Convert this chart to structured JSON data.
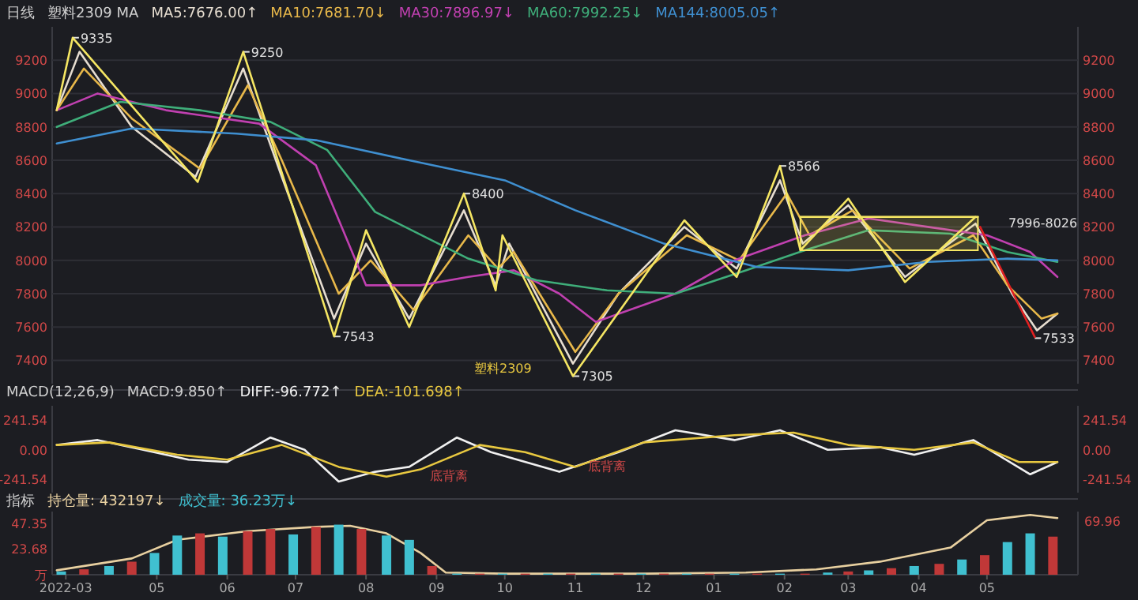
{
  "chart_data": [
    {
      "type": "line",
      "title": "日线",
      "subtitle": "塑料2309   MA",
      "legend": "top left",
      "grid": "y",
      "tick_labels": "y",
      "xlim": [
        "2022-03-16",
        "2023-06-10"
      ],
      "ylim": [
        7260,
        9400
      ],
      "yticks": [
        7400,
        7600,
        7800,
        8000,
        8200,
        8400,
        8600,
        8800,
        9000,
        9200
      ],
      "y2lim": [
        7260,
        9400
      ],
      "y2ticks": [
        7400,
        7600,
        7800,
        8000,
        8200,
        8400,
        8600,
        8800,
        9000,
        9200
      ],
      "annotations": [
        {
          "text": "9335",
          "x": "2022-03-25",
          "y": 9335
        },
        {
          "text": "9250",
          "x": "2022-06-08",
          "y": 9250
        },
        {
          "text": "7543",
          "x": "2022-07-18",
          "y": 7543
        },
        {
          "text": "8400",
          "x": "2022-09-13",
          "y": 8400
        },
        {
          "text": "7305",
          "x": "2022-10-31",
          "y": 7305
        },
        {
          "text": "8566",
          "x": "2023-01-30",
          "y": 8566
        },
        {
          "text": "7533",
          "x": "2023-05-22",
          "y": 7533
        },
        "塑料2309",
        "7996-8026"
      ],
      "series": [
        {
          "name": "MA5:7676.00↑",
          "color": "#e6ddd0",
          "x": [
            "2022-03-18",
            "2022-03-28",
            "2022-04-20",
            "2022-05-18",
            "2022-06-08",
            "2022-06-25",
            "2022-07-18",
            "2022-08-01",
            "2022-08-20",
            "2022-09-13",
            "2022-09-27",
            "2022-10-03",
            "2022-10-31",
            "2022-11-20",
            "2022-12-19",
            "2023-01-11",
            "2023-01-30",
            "2023-02-09",
            "2023-03-01",
            "2023-03-26",
            "2023-04-26",
            "2023-05-12",
            "2023-05-23",
            "2023-06-01"
          ],
          "values": [
            8900,
            9250,
            8800,
            8500,
            9150,
            8500,
            7650,
            8100,
            7650,
            8300,
            7850,
            8100,
            7380,
            7800,
            8200,
            7950,
            8480,
            8100,
            8330,
            7900,
            8220,
            7800,
            7580,
            7680
          ]
        },
        {
          "name": "MA10:7681.70↓",
          "color": "#e8b84a",
          "x": [
            "2022-03-18",
            "2022-03-30",
            "2022-04-20",
            "2022-05-20",
            "2022-06-10",
            "2022-06-25",
            "2022-07-20",
            "2022-08-03",
            "2022-08-22",
            "2022-09-15",
            "2022-09-28",
            "2022-10-05",
            "2022-11-01",
            "2022-11-20",
            "2022-12-20",
            "2023-01-12",
            "2023-02-02",
            "2023-02-12",
            "2023-03-03",
            "2023-03-28",
            "2023-04-25",
            "2023-05-10",
            "2023-05-25",
            "2023-06-01"
          ],
          "values": [
            8900,
            9150,
            8850,
            8550,
            9050,
            8600,
            7800,
            8000,
            7700,
            8150,
            7950,
            8050,
            7450,
            7800,
            8150,
            8000,
            8400,
            8150,
            8300,
            7950,
            8150,
            7850,
            7650,
            7680
          ]
        },
        {
          "name": "MA30:7896.97↓",
          "color": "#c040b0",
          "x": [
            "2022-03-18",
            "2022-04-05",
            "2022-05-05",
            "2022-06-15",
            "2022-07-10",
            "2022-08-01",
            "2022-08-25",
            "2022-09-15",
            "2022-10-05",
            "2022-10-25",
            "2022-11-10",
            "2022-12-15",
            "2023-01-10",
            "2023-02-10",
            "2023-03-10",
            "2023-04-05",
            "2023-05-01",
            "2023-05-20",
            "2023-06-01"
          ],
          "values": [
            8900,
            9000,
            8900,
            8820,
            8570,
            7850,
            7850,
            7900,
            7940,
            7800,
            7630,
            7800,
            8000,
            8150,
            8250,
            8200,
            8150,
            8050,
            7900
          ]
        },
        {
          "name": "MA60:7992.25↓",
          "color": "#3fae7a",
          "x": [
            "2022-03-18",
            "2022-04-15",
            "2022-05-20",
            "2022-06-20",
            "2022-07-15",
            "2022-08-05",
            "2022-09-15",
            "2022-10-15",
            "2022-11-15",
            "2022-12-15",
            "2023-01-15",
            "2023-02-10",
            "2023-03-10",
            "2023-04-15",
            "2023-05-10",
            "2023-06-01"
          ],
          "values": [
            8800,
            8950,
            8900,
            8830,
            8660,
            8290,
            8010,
            7880,
            7820,
            7800,
            7940,
            8060,
            8180,
            8160,
            8050,
            7990
          ]
        },
        {
          "name": "MA144:8005.05↑",
          "color": "#3f8fd0",
          "x": [
            "2022-03-18",
            "2022-04-20",
            "2022-06-05",
            "2022-07-10",
            "2022-08-20",
            "2022-10-01",
            "2022-11-01",
            "2022-12-10",
            "2023-01-20",
            "2023-03-01",
            "2023-04-05",
            "2023-05-10",
            "2023-06-01"
          ],
          "values": [
            8700,
            8790,
            8760,
            8720,
            8600,
            8480,
            8300,
            8100,
            7960,
            7940,
            7990,
            8010,
            8000
          ]
        },
        {
          "color": "#f5e663",
          "x": [
            "2022-03-18",
            "2022-03-25",
            "2022-05-19",
            "2022-06-08",
            "2022-07-18",
            "2022-08-01",
            "2022-08-20",
            "2022-09-13",
            "2022-09-27",
            "2022-09-30",
            "2022-10-31",
            "2022-12-19",
            "2023-01-11",
            "2023-01-30",
            "2023-02-08",
            "2023-03-01",
            "2023-03-26",
            "2023-04-26"
          ],
          "values": [
            8900,
            9335,
            8470,
            9250,
            7543,
            8180,
            7600,
            8400,
            7820,
            8150,
            7305,
            8240,
            7900,
            8566,
            8060,
            8370,
            7870,
            8260
          ]
        },
        {
          "color": "#f5e663",
          "x": [
            "2023-02-08",
            "2023-04-27"
          ],
          "values": [
            8260,
            8260
          ],
          "lower": [
            8060,
            8060
          ],
          "upper": [
            8260,
            8260
          ]
        },
        {
          "color": "#e02020",
          "x": [
            "2023-04-28",
            "2023-05-22"
          ],
          "values": [
            8200,
            7540
          ]
        }
      ]
    },
    {
      "type": "line",
      "title": "MACD(12,26,9)",
      "subtitle": "MACD:9.850↑",
      "legend": "top left",
      "tick_labels": "y",
      "xlim": [
        "2022-03-16",
        "2023-06-10"
      ],
      "ylim": [
        -350,
        360
      ],
      "yticks": [
        -241.54,
        {
          "value": 0,
          "label": "0.00"
        },
        241.54
      ],
      "y2lim": [
        -350,
        360
      ],
      "y2ticks": [
        -241.54,
        {
          "value": 0,
          "label": "0.00"
        },
        241.54
      ],
      "annotations": [
        "底背离",
        "底背离"
      ],
      "series": [
        {
          "name": "DIFF:-96.772↑",
          "color": "#f0f0f0",
          "x": [
            "2022-03-18",
            "2022-04-05",
            "2022-04-25",
            "2022-05-15",
            "2022-06-01",
            "2022-06-20",
            "2022-07-05",
            "2022-07-20",
            "2022-08-05",
            "2022-08-20",
            "2022-09-10",
            "2022-09-25",
            "2022-10-25",
            "2022-11-20",
            "2022-12-15",
            "2023-01-10",
            "2023-01-30",
            "2023-02-20",
            "2023-03-15",
            "2023-03-30",
            "2023-04-25",
            "2023-05-20",
            "2023-06-01"
          ],
          "values": [
            40,
            80,
            0,
            -80,
            -100,
            100,
            0,
            -260,
            -180,
            -140,
            100,
            -20,
            -180,
            -20,
            160,
            80,
            160,
            0,
            20,
            -40,
            80,
            -200,
            -100
          ]
        },
        {
          "name": "DEA:-101.698↑",
          "color": "#e8c840",
          "x": [
            "2022-03-18",
            "2022-04-10",
            "2022-05-10",
            "2022-06-01",
            "2022-06-25",
            "2022-07-20",
            "2022-08-10",
            "2022-08-25",
            "2022-09-20",
            "2022-10-10",
            "2022-11-01",
            "2022-12-01",
            "2023-01-10",
            "2023-02-05",
            "2023-03-01",
            "2023-03-30",
            "2023-04-25",
            "2023-05-15",
            "2023-06-01"
          ],
          "values": [
            40,
            60,
            -40,
            -80,
            40,
            -140,
            -220,
            -160,
            40,
            -20,
            -140,
            60,
            120,
            140,
            40,
            0,
            60,
            -100,
            -100
          ]
        }
      ]
    },
    {
      "type": "bar",
      "title": "指标",
      "legend": "top left",
      "xlim": [
        "2022-03-16",
        "2023-06-10"
      ],
      "ylim": [
        0,
        58
      ],
      "yticks": [
        {
          "value": 0,
          "label": "万"
        },
        23.68,
        47.35
      ],
      "annotations": [
        "69.96"
      ],
      "xticks": [
        {
          "value": "2022-03-22",
          "label": "2022-03"
        },
        {
          "value": "2022-05-01",
          "label": "05"
        },
        {
          "value": "2022-06-01",
          "label": "06"
        },
        {
          "value": "2022-07-01",
          "label": "07"
        },
        {
          "value": "2022-08-01",
          "label": "08"
        },
        {
          "value": "2022-09-01",
          "label": "09"
        },
        {
          "value": "2022-10-01",
          "label": "10"
        },
        {
          "value": "2022-11-01",
          "label": "11"
        },
        {
          "value": "2022-12-01",
          "label": "12"
        },
        {
          "value": "2023-01-01",
          "label": "01"
        },
        {
          "value": "2023-02-01",
          "label": "02"
        },
        {
          "value": "2023-03-01",
          "label": "03"
        },
        {
          "value": "2023-04-01",
          "label": "04"
        },
        {
          "value": "2023-05-01",
          "label": "05"
        }
      ],
      "series": [
        {
          "name": "持仓量: 432197↓",
          "type": "line",
          "color": "#e8d0a0",
          "x": [
            "2022-03-18",
            "2022-04-20",
            "2022-05-10",
            "2022-06-10",
            "2022-07-10",
            "2022-07-25",
            "2022-08-10",
            "2022-08-25",
            "2022-09-05",
            "2022-10-01",
            "2022-12-01",
            "2023-01-15",
            "2023-02-15",
            "2023-03-15",
            "2023-04-15",
            "2023-05-01",
            "2023-05-20",
            "2023-06-01"
          ],
          "values": [
            4,
            15,
            32,
            40,
            44,
            45,
            38,
            20,
            2,
            1,
            1,
            2,
            5,
            12,
            25,
            50,
            55,
            52
          ]
        },
        {
          "name": "成交量: 36.23万↓",
          "color": "#40c0d0",
          "x": [
            "2022-03-20",
            "2022-03-30",
            "2022-04-10",
            "2022-04-20",
            "2022-04-30",
            "2022-05-10",
            "2022-05-20",
            "2022-05-30",
            "2022-06-10",
            "2022-06-20",
            "2022-06-30",
            "2022-07-10",
            "2022-07-20",
            "2022-07-30",
            "2022-08-10",
            "2022-08-20",
            "2022-08-30",
            "2022-09-10",
            "2022-09-20",
            "2022-09-30",
            "2022-10-10",
            "2022-10-20",
            "2022-10-30",
            "2022-11-10",
            "2022-11-20",
            "2022-11-30",
            "2022-12-10",
            "2022-12-20",
            "2022-12-30",
            "2023-01-10",
            "2023-01-20",
            "2023-01-30",
            "2023-02-10",
            "2023-02-20",
            "2023-03-01",
            "2023-03-10",
            "2023-03-20",
            "2023-03-30",
            "2023-04-10",
            "2023-04-20",
            "2023-04-30",
            "2023-05-10",
            "2023-05-20",
            "2023-05-30"
          ],
          "values": [
            3,
            5,
            8,
            12,
            20,
            36,
            38,
            35,
            40,
            42,
            37,
            44,
            46,
            42,
            36,
            32,
            8,
            1,
            1,
            1,
            1,
            1,
            1,
            1,
            1,
            1,
            1,
            1,
            1,
            1,
            1,
            1,
            1,
            2,
            3,
            4,
            6,
            8,
            10,
            14,
            18,
            30,
            38,
            35
          ],
          "colors": [
            "#40c0d0",
            "#c03838",
            "#40c0d0",
            "#c03838",
            "#40c0d0",
            "#40c0d0",
            "#c03838",
            "#40c0d0",
            "#c03838",
            "#c03838",
            "#40c0d0",
            "#c03838",
            "#40c0d0",
            "#c03838",
            "#40c0d0",
            "#40c0d0",
            "#c03838",
            "#40c0d0",
            "#c03838",
            "#40c0d0",
            "#c03838",
            "#40c0d0",
            "#c03838",
            "#40c0d0",
            "#c03838",
            "#40c0d0",
            "#c03838",
            "#40c0d0",
            "#c03838",
            "#40c0d0",
            "#c03838",
            "#40c0d0",
            "#c03838",
            "#40c0d0",
            "#c03838",
            "#40c0d0",
            "#c03838",
            "#40c0d0",
            "#c03838",
            "#40c0d0",
            "#c03838",
            "#40c0d0",
            "#40c0d0",
            "#c03838"
          ]
        }
      ]
    }
  ]
}
